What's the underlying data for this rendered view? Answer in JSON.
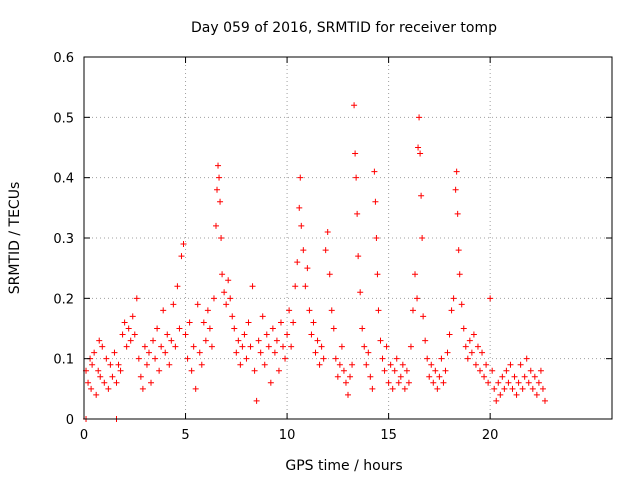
{
  "chart_data": {
    "type": "scatter",
    "title": "Day 059 of 2016, SRMTID for receiver tomp",
    "xlabel": "GPS time / hours",
    "ylabel": "SRMTID / TECUs",
    "xlim": [
      0,
      26
    ],
    "ylim": [
      0,
      0.6
    ],
    "xticks": [
      "0",
      "5",
      "10",
      "15",
      "20"
    ],
    "yticks": [
      "0",
      "0.1",
      "0.2",
      "0.3",
      "0.4",
      "0.5",
      "0.6"
    ],
    "grid": true,
    "colors": {
      "marker": "#ff0000",
      "grid": "#a0a0a0",
      "axis": "#000000"
    },
    "marker": "plus",
    "series": [
      {
        "name": "SRMTID",
        "points": [
          [
            0.1,
            0.0
          ],
          [
            1.6,
            0.0
          ],
          [
            0.1,
            0.08
          ],
          [
            0.2,
            0.06
          ],
          [
            0.3,
            0.1
          ],
          [
            0.35,
            0.05
          ],
          [
            0.4,
            0.09
          ],
          [
            0.5,
            0.11
          ],
          [
            0.6,
            0.04
          ],
          [
            0.7,
            0.08
          ],
          [
            0.75,
            0.13
          ],
          [
            0.8,
            0.07
          ],
          [
            0.9,
            0.12
          ],
          [
            1.0,
            0.06
          ],
          [
            1.1,
            0.1
          ],
          [
            1.2,
            0.05
          ],
          [
            1.3,
            0.09
          ],
          [
            1.4,
            0.07
          ],
          [
            1.5,
            0.11
          ],
          [
            1.6,
            0.06
          ],
          [
            1.7,
            0.09
          ],
          [
            1.8,
            0.08
          ],
          [
            1.9,
            0.14
          ],
          [
            2.0,
            0.16
          ],
          [
            2.1,
            0.12
          ],
          [
            2.2,
            0.15
          ],
          [
            2.3,
            0.13
          ],
          [
            2.4,
            0.17
          ],
          [
            2.5,
            0.14
          ],
          [
            2.6,
            0.2
          ],
          [
            2.7,
            0.1
          ],
          [
            2.8,
            0.07
          ],
          [
            2.9,
            0.05
          ],
          [
            3.0,
            0.12
          ],
          [
            3.1,
            0.09
          ],
          [
            3.2,
            0.11
          ],
          [
            3.3,
            0.06
          ],
          [
            3.4,
            0.13
          ],
          [
            3.5,
            0.1
          ],
          [
            3.6,
            0.15
          ],
          [
            3.7,
            0.08
          ],
          [
            3.8,
            0.12
          ],
          [
            3.9,
            0.18
          ],
          [
            4.0,
            0.11
          ],
          [
            4.1,
            0.14
          ],
          [
            4.2,
            0.09
          ],
          [
            4.3,
            0.13
          ],
          [
            4.4,
            0.19
          ],
          [
            4.5,
            0.12
          ],
          [
            4.6,
            0.22
          ],
          [
            4.7,
            0.15
          ],
          [
            4.8,
            0.27
          ],
          [
            4.9,
            0.29
          ],
          [
            5.0,
            0.14
          ],
          [
            5.1,
            0.1
          ],
          [
            5.2,
            0.16
          ],
          [
            5.3,
            0.08
          ],
          [
            5.4,
            0.12
          ],
          [
            5.5,
            0.05
          ],
          [
            5.6,
            0.19
          ],
          [
            5.7,
            0.11
          ],
          [
            5.8,
            0.09
          ],
          [
            5.9,
            0.16
          ],
          [
            6.0,
            0.13
          ],
          [
            6.1,
            0.18
          ],
          [
            6.2,
            0.15
          ],
          [
            6.3,
            0.12
          ],
          [
            6.4,
            0.2
          ],
          [
            6.5,
            0.32
          ],
          [
            6.55,
            0.38
          ],
          [
            6.6,
            0.42
          ],
          [
            6.65,
            0.4
          ],
          [
            6.7,
            0.36
          ],
          [
            6.75,
            0.3
          ],
          [
            6.8,
            0.24
          ],
          [
            6.9,
            0.21
          ],
          [
            7.0,
            0.19
          ],
          [
            7.1,
            0.23
          ],
          [
            7.2,
            0.2
          ],
          [
            7.3,
            0.17
          ],
          [
            7.4,
            0.15
          ],
          [
            7.5,
            0.11
          ],
          [
            7.6,
            0.13
          ],
          [
            7.7,
            0.09
          ],
          [
            7.8,
            0.12
          ],
          [
            7.9,
            0.14
          ],
          [
            8.0,
            0.1
          ],
          [
            8.1,
            0.16
          ],
          [
            8.2,
            0.12
          ],
          [
            8.3,
            0.22
          ],
          [
            8.4,
            0.08
          ],
          [
            8.5,
            0.03
          ],
          [
            8.6,
            0.13
          ],
          [
            8.7,
            0.11
          ],
          [
            8.8,
            0.17
          ],
          [
            8.9,
            0.09
          ],
          [
            9.0,
            0.14
          ],
          [
            9.1,
            0.12
          ],
          [
            9.2,
            0.06
          ],
          [
            9.3,
            0.15
          ],
          [
            9.4,
            0.11
          ],
          [
            9.5,
            0.13
          ],
          [
            9.6,
            0.08
          ],
          [
            9.7,
            0.16
          ],
          [
            9.8,
            0.12
          ],
          [
            9.9,
            0.1
          ],
          [
            10.0,
            0.14
          ],
          [
            10.1,
            0.18
          ],
          [
            10.2,
            0.12
          ],
          [
            10.3,
            0.16
          ],
          [
            10.4,
            0.22
          ],
          [
            10.5,
            0.26
          ],
          [
            10.6,
            0.35
          ],
          [
            10.65,
            0.4
          ],
          [
            10.7,
            0.32
          ],
          [
            10.8,
            0.28
          ],
          [
            10.9,
            0.22
          ],
          [
            11.0,
            0.25
          ],
          [
            11.1,
            0.18
          ],
          [
            11.2,
            0.14
          ],
          [
            11.3,
            0.16
          ],
          [
            11.4,
            0.11
          ],
          [
            11.5,
            0.13
          ],
          [
            11.6,
            0.09
          ],
          [
            11.7,
            0.12
          ],
          [
            11.8,
            0.1
          ],
          [
            11.9,
            0.28
          ],
          [
            12.0,
            0.31
          ],
          [
            12.1,
            0.24
          ],
          [
            12.2,
            0.18
          ],
          [
            12.3,
            0.15
          ],
          [
            12.4,
            0.1
          ],
          [
            12.5,
            0.07
          ],
          [
            12.6,
            0.09
          ],
          [
            12.7,
            0.12
          ],
          [
            12.8,
            0.08
          ],
          [
            12.9,
            0.06
          ],
          [
            13.0,
            0.04
          ],
          [
            13.1,
            0.07
          ],
          [
            13.2,
            0.09
          ],
          [
            13.3,
            0.52
          ],
          [
            13.35,
            0.44
          ],
          [
            13.4,
            0.4
          ],
          [
            13.45,
            0.34
          ],
          [
            13.5,
            0.27
          ],
          [
            13.6,
            0.21
          ],
          [
            13.7,
            0.15
          ],
          [
            13.8,
            0.12
          ],
          [
            13.9,
            0.09
          ],
          [
            14.0,
            0.11
          ],
          [
            14.1,
            0.07
          ],
          [
            14.2,
            0.05
          ],
          [
            14.3,
            0.41
          ],
          [
            14.35,
            0.36
          ],
          [
            14.4,
            0.3
          ],
          [
            14.45,
            0.24
          ],
          [
            14.5,
            0.18
          ],
          [
            14.6,
            0.13
          ],
          [
            14.7,
            0.1
          ],
          [
            14.8,
            0.08
          ],
          [
            14.9,
            0.12
          ],
          [
            15.0,
            0.06
          ],
          [
            15.1,
            0.09
          ],
          [
            15.2,
            0.05
          ],
          [
            15.3,
            0.08
          ],
          [
            15.4,
            0.1
          ],
          [
            15.5,
            0.06
          ],
          [
            15.6,
            0.07
          ],
          [
            15.7,
            0.09
          ],
          [
            15.8,
            0.05
          ],
          [
            15.9,
            0.08
          ],
          [
            16.0,
            0.06
          ],
          [
            16.1,
            0.12
          ],
          [
            16.2,
            0.18
          ],
          [
            16.3,
            0.24
          ],
          [
            16.4,
            0.2
          ],
          [
            16.45,
            0.45
          ],
          [
            16.5,
            0.5
          ],
          [
            16.55,
            0.44
          ],
          [
            16.6,
            0.37
          ],
          [
            16.65,
            0.3
          ],
          [
            16.7,
            0.17
          ],
          [
            16.8,
            0.13
          ],
          [
            16.9,
            0.1
          ],
          [
            17.0,
            0.07
          ],
          [
            17.1,
            0.09
          ],
          [
            17.2,
            0.06
          ],
          [
            17.3,
            0.08
          ],
          [
            17.4,
            0.05
          ],
          [
            17.5,
            0.07
          ],
          [
            17.6,
            0.1
          ],
          [
            17.7,
            0.06
          ],
          [
            17.8,
            0.08
          ],
          [
            17.9,
            0.11
          ],
          [
            18.0,
            0.14
          ],
          [
            18.1,
            0.18
          ],
          [
            18.2,
            0.2
          ],
          [
            18.3,
            0.38
          ],
          [
            18.35,
            0.41
          ],
          [
            18.4,
            0.34
          ],
          [
            18.45,
            0.28
          ],
          [
            18.5,
            0.24
          ],
          [
            18.6,
            0.19
          ],
          [
            18.7,
            0.15
          ],
          [
            18.8,
            0.12
          ],
          [
            18.9,
            0.1
          ],
          [
            19.0,
            0.13
          ],
          [
            19.1,
            0.11
          ],
          [
            19.2,
            0.14
          ],
          [
            19.3,
            0.09
          ],
          [
            19.4,
            0.12
          ],
          [
            19.5,
            0.08
          ],
          [
            19.6,
            0.11
          ],
          [
            19.7,
            0.07
          ],
          [
            19.8,
            0.09
          ],
          [
            19.9,
            0.06
          ],
          [
            20.0,
            0.2
          ],
          [
            20.1,
            0.08
          ],
          [
            20.2,
            0.05
          ],
          [
            20.3,
            0.03
          ],
          [
            20.4,
            0.06
          ],
          [
            20.5,
            0.04
          ],
          [
            20.6,
            0.07
          ],
          [
            20.7,
            0.05
          ],
          [
            20.8,
            0.08
          ],
          [
            20.9,
            0.06
          ],
          [
            21.0,
            0.09
          ],
          [
            21.1,
            0.05
          ],
          [
            21.2,
            0.07
          ],
          [
            21.3,
            0.04
          ],
          [
            21.4,
            0.06
          ],
          [
            21.5,
            0.09
          ],
          [
            21.6,
            0.05
          ],
          [
            21.7,
            0.07
          ],
          [
            21.8,
            0.1
          ],
          [
            21.9,
            0.06
          ],
          [
            22.0,
            0.08
          ],
          [
            22.1,
            0.05
          ],
          [
            22.2,
            0.07
          ],
          [
            22.3,
            0.04
          ],
          [
            22.4,
            0.06
          ],
          [
            22.5,
            0.08
          ],
          [
            22.6,
            0.05
          ],
          [
            22.7,
            0.03
          ]
        ]
      }
    ]
  }
}
